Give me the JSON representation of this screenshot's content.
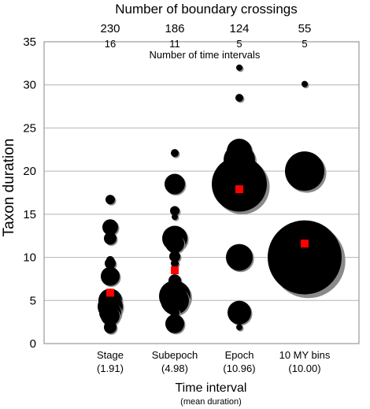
{
  "chart_data": {
    "type": "scatter",
    "title": "",
    "xlabel": "Time interval",
    "xlabel_sub": "(mean duration)",
    "ylabel": "Taxon duration",
    "ylim": [
      0,
      35
    ],
    "yticks": [
      0,
      5,
      10,
      15,
      20,
      25,
      30,
      35
    ],
    "grid": "horizontal",
    "top_axis": {
      "title": "Number of boundary crossings",
      "values": [
        "230",
        "186",
        "124",
        "55"
      ]
    },
    "inner_axis": {
      "title": "Number of time intervals",
      "values": [
        "16",
        "11",
        "5",
        "5"
      ]
    },
    "categories": [
      {
        "label": "Stage",
        "mean": "(1.91)"
      },
      {
        "label": "Subepoch",
        "mean": "(4.98)"
      },
      {
        "label": "Epoch",
        "mean": "(10.96)"
      },
      {
        "label": "10 MY bins",
        "mean": "(10.00)"
      }
    ],
    "series": [
      {
        "category": "Stage",
        "mean_value": 5.9,
        "bubbles": [
          {
            "y": 16.7,
            "size": 6
          },
          {
            "y": 13.5,
            "size": 10
          },
          {
            "y": 12.2,
            "size": 8
          },
          {
            "y": 9.7,
            "size": 5
          },
          {
            "y": 9.3,
            "size": 7
          },
          {
            "y": 7.8,
            "size": 12
          },
          {
            "y": 5.0,
            "size": 15
          },
          {
            "y": 4.3,
            "size": 16
          },
          {
            "y": 3.6,
            "size": 14
          },
          {
            "y": 3.2,
            "size": 12
          },
          {
            "y": 1.9,
            "size": 8
          }
        ]
      },
      {
        "category": "Subepoch",
        "mean_value": 8.5,
        "bubbles": [
          {
            "y": 22.1,
            "size": 5
          },
          {
            "y": 18.5,
            "size": 13
          },
          {
            "y": 15.4,
            "size": 6
          },
          {
            "y": 14.7,
            "size": 4
          },
          {
            "y": 12.2,
            "size": 16
          },
          {
            "y": 11.6,
            "size": 12
          },
          {
            "y": 10.1,
            "size": 7
          },
          {
            "y": 9.3,
            "size": 5
          },
          {
            "y": 7.3,
            "size": 8
          },
          {
            "y": 5.5,
            "size": 20
          },
          {
            "y": 5.0,
            "size": 18
          },
          {
            "y": 3.6,
            "size": 6
          },
          {
            "y": 2.3,
            "size": 12
          }
        ]
      },
      {
        "category": "Epoch",
        "mean_value": 17.9,
        "bubbles": [
          {
            "y": 32.0,
            "size": 4
          },
          {
            "y": 28.5,
            "size": 5
          },
          {
            "y": 22.3,
            "size": 16
          },
          {
            "y": 21.3,
            "size": 20
          },
          {
            "y": 18.5,
            "size": 35
          },
          {
            "y": 10.0,
            "size": 17
          },
          {
            "y": 3.6,
            "size": 15
          },
          {
            "y": 1.9,
            "size": 4
          }
        ]
      },
      {
        "category": "10 MY bins",
        "mean_value": 11.6,
        "bubbles": [
          {
            "y": 30.1,
            "size": 4
          },
          {
            "y": 20.0,
            "size": 25
          },
          {
            "y": 10.0,
            "size": 47
          }
        ]
      }
    ],
    "colors": {
      "bubble": "#000000",
      "shadow": "#8a8a8a",
      "mean_marker": "#ff0000",
      "grid": "#b4b4b4",
      "frame": "#9a9a9a"
    }
  }
}
